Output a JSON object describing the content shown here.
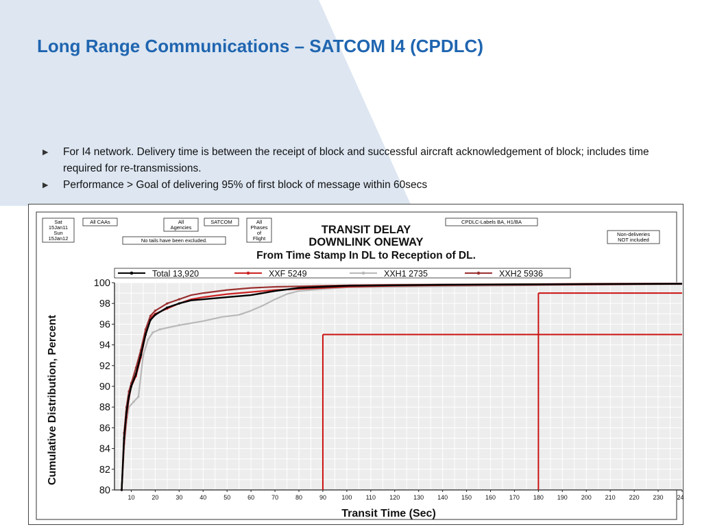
{
  "slide": {
    "title": "Long Range Communications – SATCOM I4 (CPDLC)",
    "bullets": [
      "For I4 network.  Delivery time is between the receipt of block and successful aircraft  acknowledgement of block; includes time required for re-transmissions.",
      "Performance > Goal of delivering 95% of first block of message within 60secs"
    ]
  },
  "colors": {
    "title": "#1f65b0",
    "background_shape": "#dfe7f2",
    "total": "#000000",
    "xxf": "#cc2222",
    "xxh1": "#b8b8b8",
    "xxh2": "#9b3030",
    "goal_line": "#cc1111"
  },
  "header_boxes": {
    "date": [
      "Sat",
      "15Jan11",
      "Sun",
      "15Jan12"
    ],
    "caas": "All CAAs",
    "agencies": [
      "All",
      "Agencies"
    ],
    "satcom": "SATCOM",
    "phases": [
      "All",
      "Phases",
      "of",
      "Flight"
    ],
    "tails": "No tails have been excluded.",
    "labels": "CPDLC-Labels BA, H1/BA",
    "nondeliveries": [
      "Non-deliveries",
      "NOT included"
    ]
  },
  "chart_data": {
    "type": "line",
    "title": [
      "TRANSIT DELAY",
      "DOWNLINK ONEWAY",
      "From Time Stamp In DL to Reception of DL."
    ],
    "xlabel": "Transit Time (Sec)",
    "ylabel": "Cumulative Distribution, Percent",
    "xlim": [
      3,
      240
    ],
    "ylim": [
      80,
      100
    ],
    "xticks": [
      10,
      20,
      30,
      40,
      50,
      60,
      70,
      80,
      90,
      100,
      110,
      120,
      130,
      140,
      150,
      160,
      170,
      180,
      190,
      200,
      210,
      220,
      230,
      240
    ],
    "yticks": [
      80,
      82,
      84,
      86,
      88,
      90,
      92,
      94,
      96,
      98,
      100
    ],
    "grid": true,
    "legend_position": "top",
    "series": [
      {
        "name": "Total  13,920",
        "color": "#000000",
        "points": [
          [
            6,
            80
          ],
          [
            7,
            85
          ],
          [
            8,
            87.5
          ],
          [
            9,
            89
          ],
          [
            10,
            90
          ],
          [
            12,
            91.2
          ],
          [
            14,
            93
          ],
          [
            16,
            95
          ],
          [
            18,
            96.4
          ],
          [
            20,
            96.9
          ],
          [
            25,
            97.6
          ],
          [
            30,
            98
          ],
          [
            35,
            98.3
          ],
          [
            40,
            98.4
          ],
          [
            50,
            98.6
          ],
          [
            60,
            98.8
          ],
          [
            70,
            99.2
          ],
          [
            80,
            99.5
          ],
          [
            90,
            99.6
          ],
          [
            100,
            99.7
          ],
          [
            120,
            99.75
          ],
          [
            140,
            99.8
          ],
          [
            160,
            99.82
          ],
          [
            180,
            99.84
          ],
          [
            200,
            99.86
          ],
          [
            220,
            99.88
          ],
          [
            240,
            99.9
          ]
        ]
      },
      {
        "name": "XXF 5249",
        "color": "#cc2222",
        "points": [
          [
            6,
            80
          ],
          [
            7,
            84.5
          ],
          [
            8,
            87
          ],
          [
            9,
            88.8
          ],
          [
            10,
            90
          ],
          [
            12,
            91
          ],
          [
            14,
            92.8
          ],
          [
            16,
            95
          ],
          [
            18,
            96.6
          ],
          [
            20,
            97
          ],
          [
            25,
            97.5
          ],
          [
            30,
            98
          ],
          [
            35,
            98.4
          ],
          [
            40,
            98.6
          ],
          [
            50,
            98.9
          ],
          [
            60,
            99.1
          ],
          [
            70,
            99.3
          ],
          [
            80,
            99.4
          ],
          [
            90,
            99.5
          ],
          [
            100,
            99.6
          ],
          [
            120,
            99.7
          ],
          [
            140,
            99.75
          ],
          [
            160,
            99.78
          ],
          [
            180,
            99.8
          ],
          [
            200,
            99.83
          ],
          [
            220,
            99.86
          ],
          [
            240,
            99.88
          ]
        ]
      },
      {
        "name": "XXH1 2735",
        "color": "#b8b8b8",
        "points": [
          [
            6,
            80
          ],
          [
            7,
            84
          ],
          [
            8,
            86.5
          ],
          [
            9,
            88
          ],
          [
            11,
            88.5
          ],
          [
            13,
            89
          ],
          [
            15,
            93
          ],
          [
            17,
            94.5
          ],
          [
            19,
            95.2
          ],
          [
            22,
            95.5
          ],
          [
            30,
            95.9
          ],
          [
            40,
            96.3
          ],
          [
            48,
            96.7
          ],
          [
            55,
            96.9
          ],
          [
            60,
            97.3
          ],
          [
            65,
            97.8
          ],
          [
            70,
            98.4
          ],
          [
            75,
            98.9
          ],
          [
            80,
            99.2
          ],
          [
            90,
            99.4
          ],
          [
            100,
            99.55
          ],
          [
            120,
            99.6
          ],
          [
            140,
            99.65
          ],
          [
            160,
            99.7
          ],
          [
            180,
            99.75
          ],
          [
            200,
            99.8
          ],
          [
            220,
            99.82
          ],
          [
            240,
            99.85
          ]
        ]
      },
      {
        "name": "XXH2 5936",
        "color": "#9b3030",
        "points": [
          [
            6,
            80
          ],
          [
            7,
            85.5
          ],
          [
            8,
            88
          ],
          [
            9,
            89.5
          ],
          [
            10,
            90.3
          ],
          [
            12,
            91.8
          ],
          [
            14,
            93.5
          ],
          [
            16,
            95.5
          ],
          [
            18,
            96.8
          ],
          [
            20,
            97.3
          ],
          [
            25,
            98
          ],
          [
            30,
            98.4
          ],
          [
            35,
            98.8
          ],
          [
            40,
            99
          ],
          [
            50,
            99.3
          ],
          [
            60,
            99.5
          ],
          [
            70,
            99.6
          ],
          [
            80,
            99.65
          ],
          [
            90,
            99.7
          ],
          [
            100,
            99.75
          ],
          [
            120,
            99.8
          ],
          [
            140,
            99.82
          ],
          [
            160,
            99.85
          ],
          [
            180,
            99.87
          ],
          [
            200,
            99.9
          ],
          [
            220,
            99.92
          ],
          [
            240,
            99.93
          ]
        ]
      }
    ],
    "reference_lines": [
      {
        "x": 90,
        "y": 95
      },
      {
        "x": 180,
        "y": 99
      }
    ]
  }
}
